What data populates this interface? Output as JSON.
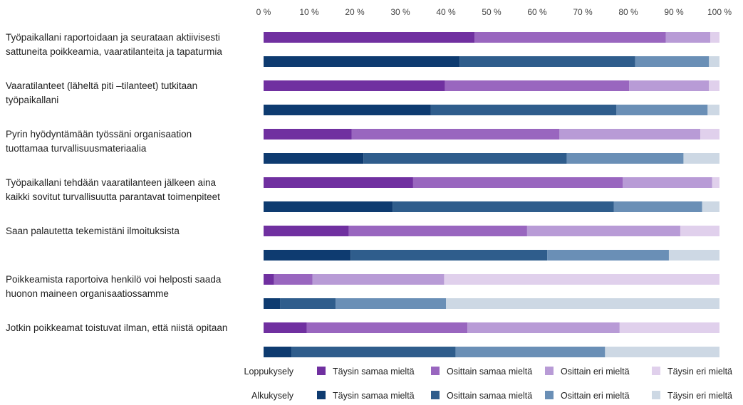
{
  "chart_data": {
    "type": "bar",
    "orientation": "horizontal",
    "stacked": true,
    "percent_axis": true,
    "x_ticks": [
      "0 %",
      "10 %",
      "20 %",
      "30 %",
      "40 %",
      "50 %",
      "60 %",
      "70 %",
      "80 %",
      "90 %",
      "100 %"
    ],
    "xlim": [
      0,
      100
    ],
    "grid": false,
    "legend_position": "bottom",
    "categories": [
      [
        "Työpaikallani raportoidaan ja seurataan aktiivisesti",
        "sattuneita poikkeamia, vaaratilanteita ja tapaturmia"
      ],
      [
        "Vaaratilanteet (läheltä piti –tilanteet) tutkitaan",
        "työpaikallani"
      ],
      [
        "Pyrin hyödyntämään työssäni organisaation",
        "tuottamaa turvallisuusmateriaalia"
      ],
      [
        "Työpaikallani tehdään vaaratilanteen jälkeen aina",
        "kaikki sovitut turvallisuutta parantavat toimenpiteet"
      ],
      [
        "Saan palautetta tekemistäni ilmoituksista"
      ],
      [
        "Poikkeamista raportoiva henkilö voi helposti saada",
        "huonon maineen organisaatiossamme"
      ],
      [
        "Jotkin poikkeamat toistuvat ilman, että niistä opitaan"
      ]
    ],
    "response_labels": [
      "Täysin samaa mieltä",
      "Osittain samaa mieltä",
      "Osittain eri mieltä",
      "Täysin eri mieltä"
    ],
    "groups": [
      {
        "name": "Loppukysely",
        "colors": [
          "#7030a0",
          "#9966bf",
          "#b89bd6",
          "#e0d0ec"
        ],
        "values": [
          [
            46.3,
            41.9,
            9.8,
            2.0
          ],
          [
            39.8,
            40.4,
            17.5,
            2.3
          ],
          [
            19.3,
            45.6,
            30.9,
            4.2
          ],
          [
            32.8,
            46.0,
            19.6,
            1.6
          ],
          [
            18.7,
            39.1,
            33.6,
            8.6
          ],
          [
            2.3,
            8.4,
            28.9,
            60.4
          ],
          [
            9.5,
            35.2,
            33.4,
            21.9
          ]
        ]
      },
      {
        "name": "Alkukysely",
        "colors": [
          "#0e3b70",
          "#2f5d8c",
          "#6a8fb6",
          "#cdd8e4"
        ],
        "values": [
          [
            43.0,
            38.5,
            16.2,
            2.3
          ],
          [
            36.7,
            40.7,
            20.0,
            2.6
          ],
          [
            21.9,
            44.6,
            25.6,
            7.9
          ],
          [
            28.3,
            48.5,
            19.4,
            3.8
          ],
          [
            19.1,
            43.1,
            26.7,
            11.1
          ],
          [
            3.6,
            12.2,
            24.2,
            60.0
          ],
          [
            6.1,
            36.0,
            32.8,
            25.1
          ]
        ]
      }
    ]
  }
}
